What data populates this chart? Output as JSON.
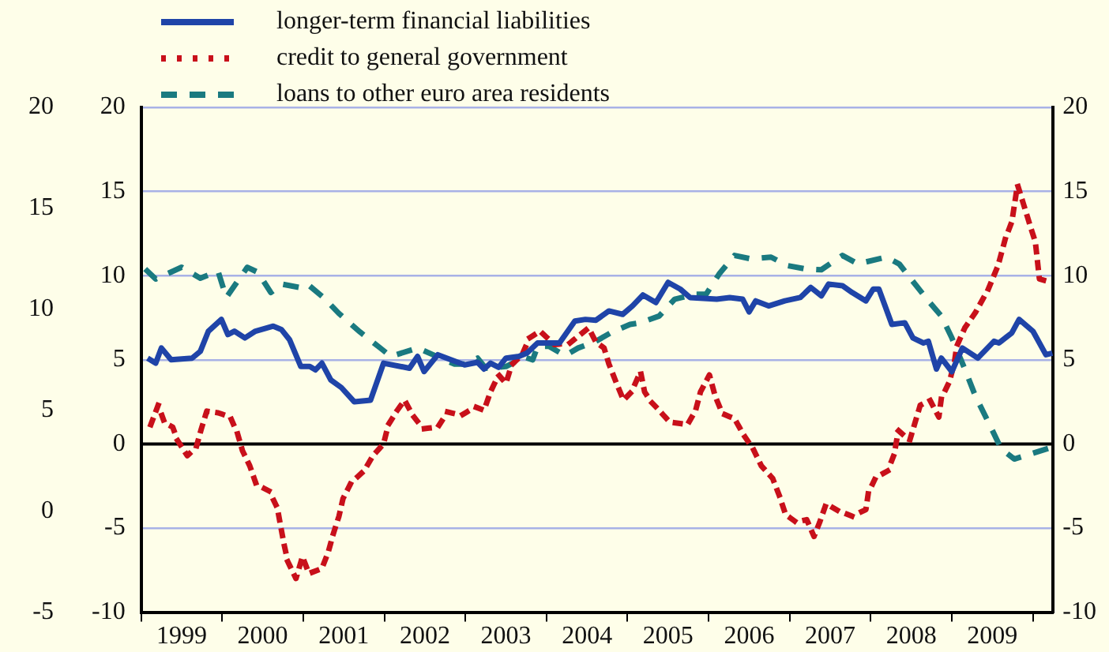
{
  "chart_data": {
    "type": "line",
    "xlim": [
      1999,
      2010.25
    ],
    "xticks": [
      {
        "value": 1999,
        "label": null
      },
      {
        "value": 1999.5,
        "label": "1999"
      },
      {
        "value": 2000,
        "label": null
      },
      {
        "value": 2000.5,
        "label": "2000"
      },
      {
        "value": 2001,
        "label": null
      },
      {
        "value": 2001.5,
        "label": "2001"
      },
      {
        "value": 2002,
        "label": null
      },
      {
        "value": 2002.5,
        "label": "2002"
      },
      {
        "value": 2003,
        "label": null
      },
      {
        "value": 2003.5,
        "label": "2003"
      },
      {
        "value": 2004,
        "label": null
      },
      {
        "value": 2004.5,
        "label": "2004"
      },
      {
        "value": 2005,
        "label": null
      },
      {
        "value": 2005.5,
        "label": "2005"
      },
      {
        "value": 2006,
        "label": null
      },
      {
        "value": 2006.5,
        "label": "2006"
      },
      {
        "value": 2007,
        "label": null
      },
      {
        "value": 2007.5,
        "label": "2007"
      },
      {
        "value": 2008,
        "label": null
      },
      {
        "value": 2008.5,
        "label": "2008"
      },
      {
        "value": 2009,
        "label": null
      },
      {
        "value": 2009.5,
        "label": "2009"
      },
      {
        "value": 2010,
        "label": null
      }
    ],
    "ylim": [
      -10,
      20
    ],
    "yticks": [
      -10,
      -5,
      0,
      5,
      10,
      15,
      20
    ],
    "y2lim": [
      -10,
      20
    ],
    "y2ticks": [
      -10,
      -5,
      0,
      5,
      10,
      15,
      20
    ],
    "y3lim": [
      -5,
      20
    ],
    "y3ticks": [
      -5,
      0,
      5,
      10,
      15,
      20
    ],
    "grid": "y",
    "legend": "top left",
    "marker": "none",
    "ref_lines": [
      {
        "axis": "y",
        "value": 0,
        "color": "#000000"
      }
    ],
    "series": [
      {
        "name": "longer-term financial liabilities",
        "color": "#1f44a8",
        "line_style": "solid",
        "x": [
          1999.08,
          1999.18,
          1999.25,
          1999.37,
          1999.63,
          1999.73,
          1999.83,
          1999.99,
          2000.07,
          2000.15,
          2000.28,
          2000.41,
          2000.63,
          2000.73,
          2000.83,
          2000.97,
          2001.08,
          2001.15,
          2001.23,
          2001.34,
          2001.47,
          2001.63,
          2001.83,
          2001.99,
          2002.31,
          2002.41,
          2002.49,
          2002.66,
          2002.99,
          2003.15,
          2003.23,
          2003.31,
          2003.41,
          2003.5,
          2003.66,
          2003.76,
          2003.89,
          2004.03,
          2004.16,
          2004.35,
          2004.48,
          2004.61,
          2004.77,
          2004.94,
          2005.06,
          2005.19,
          2005.35,
          2005.5,
          2005.65,
          2005.77,
          2006.1,
          2006.26,
          2006.42,
          2006.5,
          2006.58,
          2006.74,
          2006.94,
          2007.13,
          2007.26,
          2007.39,
          2007.48,
          2007.65,
          2007.77,
          2007.94,
          2008.03,
          2008.1,
          2008.26,
          2008.42,
          2008.52,
          2008.65,
          2008.71,
          2008.81,
          2008.87,
          2009.0,
          2009.13,
          2009.32,
          2009.52,
          2009.58,
          2009.74,
          2009.83,
          2010.0,
          2010.16,
          2010.24
        ],
        "values": [
          5.1,
          4.8,
          5.7,
          5.0,
          5.1,
          5.5,
          6.7,
          7.4,
          6.5,
          6.7,
          6.3,
          6.7,
          7.0,
          6.8,
          6.2,
          4.6,
          4.6,
          4.4,
          4.8,
          3.8,
          3.35,
          2.5,
          2.6,
          4.8,
          4.5,
          5.2,
          4.3,
          5.3,
          4.7,
          4.85,
          4.45,
          4.8,
          4.55,
          5.1,
          5.2,
          5.4,
          6.0,
          6.0,
          6.0,
          7.3,
          7.4,
          7.35,
          7.9,
          7.7,
          8.2,
          8.85,
          8.4,
          9.6,
          9.2,
          8.7,
          8.6,
          8.7,
          8.6,
          7.85,
          8.5,
          8.2,
          8.5,
          8.7,
          9.3,
          8.8,
          9.5,
          9.4,
          9.0,
          8.5,
          9.2,
          9.2,
          7.1,
          7.2,
          6.3,
          6.0,
          6.1,
          4.45,
          5.1,
          4.3,
          5.7,
          5.1,
          6.1,
          6.0,
          6.6,
          7.4,
          6.7,
          5.3,
          5.4
        ]
      },
      {
        "name": "credit to general government",
        "color": "#c8101a",
        "line_style": "dotted",
        "x": [
          1999.12,
          1999.21,
          1999.29,
          1999.39,
          1999.45,
          1999.57,
          1999.68,
          1999.74,
          1999.81,
          1999.95,
          2000.1,
          2000.19,
          2000.25,
          2000.34,
          2000.42,
          2000.58,
          2000.68,
          2000.76,
          2000.81,
          2000.91,
          2000.99,
          2001.07,
          2001.23,
          2001.31,
          2001.37,
          2001.44,
          2001.49,
          2001.59,
          2001.75,
          2001.86,
          2001.99,
          2002.05,
          2002.16,
          2002.25,
          2002.35,
          2002.48,
          2002.66,
          2002.78,
          2002.95,
          2003.12,
          2003.23,
          2003.31,
          2003.41,
          2003.5,
          2003.57,
          2003.7,
          2003.79,
          2003.92,
          2004.1,
          2004.29,
          2004.52,
          2004.61,
          2004.71,
          2004.77,
          2004.86,
          2004.95,
          2005.05,
          2005.16,
          2005.21,
          2005.29,
          2005.37,
          2005.52,
          2005.74,
          2005.84,
          2005.9,
          2006.01,
          2006.08,
          2006.17,
          2006.32,
          2006.43,
          2006.55,
          2006.65,
          2006.79,
          2006.87,
          2006.95,
          2007.08,
          2007.21,
          2007.3,
          2007.37,
          2007.45,
          2007.59,
          2007.77,
          2007.94,
          2007.97,
          2008.06,
          2008.21,
          2008.29,
          2008.34,
          2008.48,
          2008.61,
          2008.73,
          2008.84,
          2008.87,
          2008.97,
          2009.03,
          2009.06,
          2009.16,
          2009.29,
          2009.45,
          2009.57,
          2009.66,
          2009.74,
          2009.81,
          2009.9,
          2009.97,
          2010.03,
          2010.08,
          2010.23
        ],
        "values": [
          1.15,
          2.3,
          1.25,
          1.0,
          0.2,
          -0.7,
          -0.2,
          0.85,
          1.95,
          1.85,
          1.6,
          0.6,
          -0.4,
          -1.3,
          -2.4,
          -2.8,
          -3.8,
          -5.9,
          -7.0,
          -8.0,
          -6.7,
          -7.7,
          -7.4,
          -6.4,
          -5.35,
          -4.3,
          -3.25,
          -2.3,
          -1.6,
          -0.7,
          0.0,
          1.15,
          2.0,
          2.6,
          1.7,
          0.9,
          1.0,
          1.9,
          1.7,
          2.2,
          2.0,
          3.1,
          4.1,
          3.6,
          4.7,
          5.3,
          6.3,
          6.7,
          5.9,
          6.0,
          6.9,
          6.05,
          5.7,
          4.75,
          3.65,
          2.6,
          3.1,
          4.3,
          3.1,
          2.5,
          2.1,
          1.3,
          1.15,
          2.0,
          3.1,
          4.1,
          2.85,
          1.8,
          1.5,
          0.55,
          -0.3,
          -1.3,
          -2.05,
          -3.05,
          -4.2,
          -4.65,
          -4.5,
          -5.5,
          -4.65,
          -3.55,
          -3.95,
          -4.3,
          -3.9,
          -2.9,
          -2.0,
          -1.6,
          -0.6,
          0.8,
          0.2,
          2.3,
          2.6,
          1.6,
          2.7,
          3.7,
          4.8,
          5.8,
          6.9,
          7.8,
          9.2,
          10.6,
          12.2,
          13.2,
          15.4,
          14.0,
          12.9,
          12.0,
          9.8,
          9.6
        ]
      },
      {
        "name": "loans to other euro area residents",
        "color": "#1a7a80",
        "line_style": "dashed",
        "x": [
          1999.05,
          1999.18,
          1999.5,
          1999.73,
          1999.95,
          2000.05,
          2000.31,
          2000.44,
          2000.6,
          2000.73,
          2000.95,
          2001.05,
          2001.25,
          2001.44,
          2001.7,
          2001.95,
          2002.08,
          2002.41,
          2002.6,
          2002.86,
          2002.99,
          2003.15,
          2003.25,
          2003.5,
          2003.73,
          2003.83,
          2003.89,
          2004.03,
          2004.23,
          2004.39,
          2004.61,
          2004.81,
          2005.03,
          2005.16,
          2005.39,
          2005.58,
          2005.84,
          2005.97,
          2006.13,
          2006.32,
          2006.52,
          2006.77,
          2006.97,
          2007.19,
          2007.39,
          2007.65,
          2007.84,
          2008.19,
          2008.35,
          2008.48,
          2008.71,
          2008.87,
          2009.0,
          2009.16,
          2009.29,
          2009.45,
          2009.61,
          2009.77,
          2009.97,
          2010.23
        ],
        "values": [
          10.4,
          9.8,
          10.5,
          9.85,
          10.25,
          8.7,
          10.5,
          10.2,
          9.0,
          9.5,
          9.3,
          9.5,
          8.7,
          7.75,
          6.65,
          5.7,
          5.2,
          5.7,
          5.3,
          4.75,
          4.75,
          5.1,
          4.5,
          4.6,
          5.15,
          5.0,
          5.8,
          5.8,
          5.25,
          5.7,
          6.1,
          6.65,
          7.1,
          7.2,
          7.6,
          8.6,
          8.9,
          8.9,
          10.1,
          11.2,
          11.0,
          11.1,
          10.6,
          10.4,
          10.35,
          11.2,
          10.7,
          11.1,
          10.7,
          9.9,
          8.5,
          7.6,
          6.3,
          4.45,
          2.85,
          1.3,
          -0.3,
          -0.9,
          -0.6,
          -0.2
        ]
      }
    ]
  }
}
